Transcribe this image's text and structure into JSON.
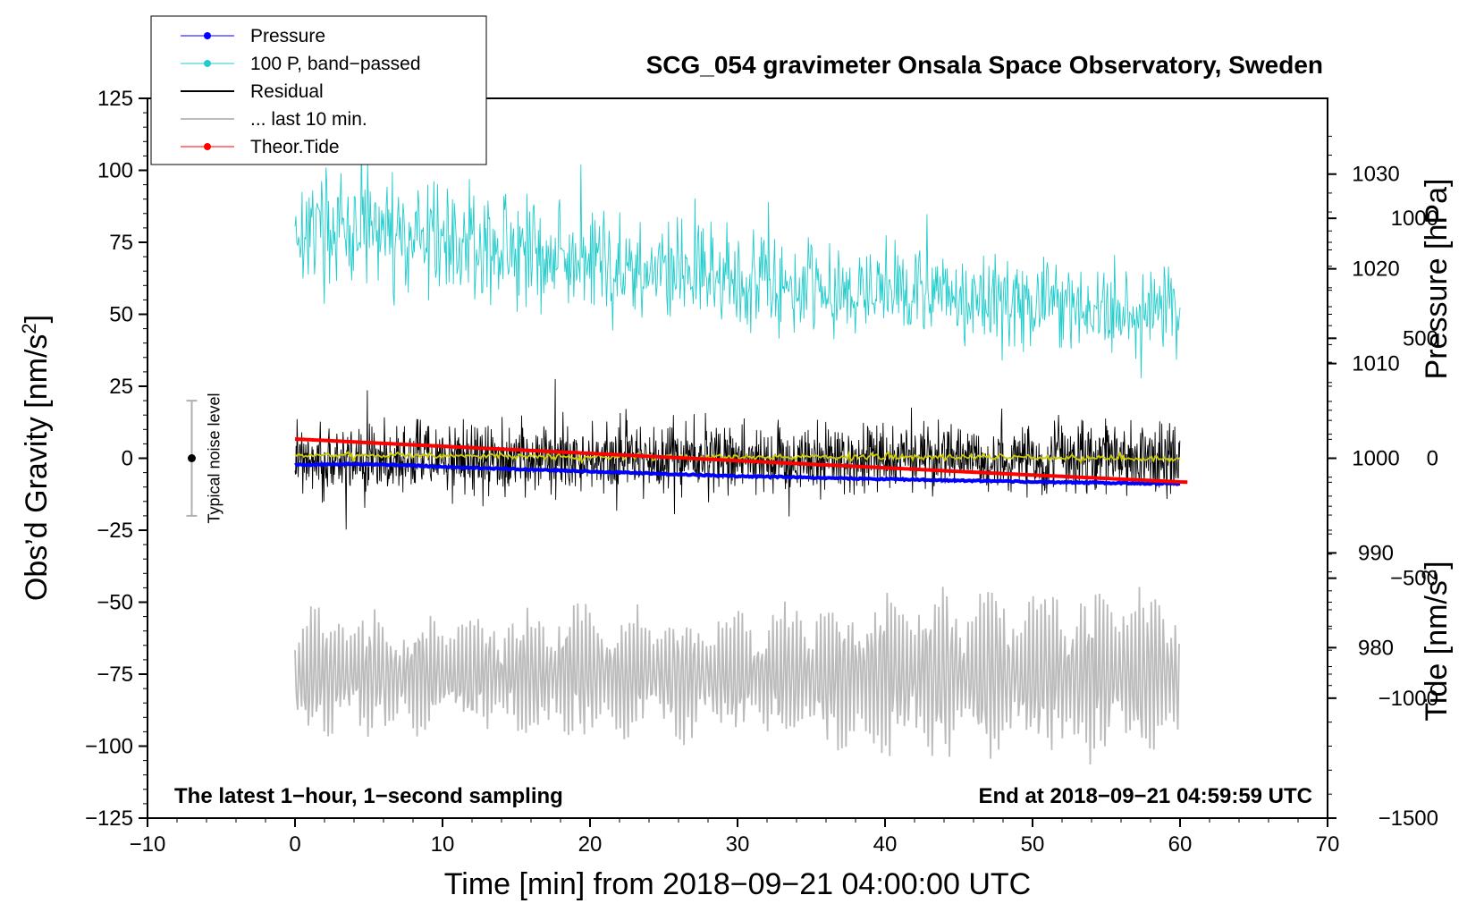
{
  "chart_data": {
    "type": "line",
    "title": "SCG_054 gravimeter Onsala Space Observatory, Sweden",
    "xlabel": "Time [min] from 2018−09−21 04:00:00 UTC",
    "ylabel_prefix": "Obs’d Gravity [nm/s",
    "ylabel_sup": "2",
    "ylabel_suffix": "]",
    "y2label_pressure": "Pressure [hPa]",
    "y2label_tide_prefix": "Tide [nm/s",
    "y2label_tide_sup": "2",
    "y2label_tide_suffix": "]",
    "xlim": [
      -10,
      70
    ],
    "ylim": [
      -125,
      125
    ],
    "pressure_axis_range": [
      962,
      1038
    ],
    "tide_axis_range": [
      -1500,
      1500
    ],
    "x_ticks": [
      -10,
      0,
      10,
      20,
      30,
      40,
      50,
      60,
      70
    ],
    "x_tick_labels": [
      "−10",
      "0",
      "10",
      "20",
      "30",
      "40",
      "50",
      "60",
      "70"
    ],
    "y_ticks": [
      -125,
      -100,
      -75,
      -50,
      -25,
      0,
      25,
      50,
      75,
      100,
      125
    ],
    "y_tick_labels": [
      "−125",
      "−100",
      "−75",
      "−50",
      "−25",
      "0",
      "25",
      "50",
      "75",
      "100",
      "125"
    ],
    "pressure_ticks": [
      980,
      990,
      1000,
      1010,
      1020,
      1030
    ],
    "pressure_tick_labels": [
      "980",
      "990",
      "1000",
      "1010",
      "1020",
      "1030"
    ],
    "tide_ticks": [
      -1500,
      -1000,
      -500,
      0,
      500,
      1000
    ],
    "tide_tick_labels": [
      "−1500",
      "−1000",
      "−500",
      "0",
      "500",
      "1000"
    ],
    "annotation_left": "The latest 1−hour, 1−second sampling",
    "annotation_right": "End at 2018−09−21 04:59:59 UTC",
    "noise_bar": {
      "label": "Typical noise level",
      "x": -7,
      "y_center": 0,
      "y_half_range": 20
    },
    "legend": [
      {
        "name": "Pressure",
        "color": "#0000ff",
        "marker": true,
        "width": 1
      },
      {
        "name": "100 P, band−passed",
        "color": "#22cccc",
        "marker": true,
        "width": 1
      },
      {
        "name": "Residual",
        "color": "#000000",
        "marker": false,
        "width": 2
      },
      {
        "name": "... last 10 min.",
        "color": "#bbbbbb",
        "marker": false,
        "width": 2
      },
      {
        "name": "Theor.Tide",
        "color": "#ff0000",
        "marker": true,
        "width": 1
      }
    ],
    "series": [
      {
        "name": "Pressure",
        "axis": "pressure_hPa",
        "color": "#0000ff",
        "x": [
          0,
          5,
          10,
          20,
          30,
          40,
          50,
          60
        ],
        "values": [
          999.3,
          999.4,
          999.1,
          998.6,
          998.1,
          997.8,
          997.5,
          997.3
        ]
      },
      {
        "name": "100 P, band−passed",
        "axis": "gravity_nm_s2",
        "color": "#22cccc",
        "x": [
          0,
          10,
          20,
          30,
          40,
          50,
          60
        ],
        "center": [
          80,
          76,
          68,
          62,
          58,
          54,
          50
        ],
        "amplitude": [
          28,
          28,
          27,
          25,
          23,
          23,
          23
        ]
      },
      {
        "name": "Residual",
        "axis": "gravity_nm_s2",
        "color": "#000000",
        "x": [
          0,
          10,
          20,
          30,
          40,
          50,
          60
        ],
        "center": [
          0,
          0,
          0,
          0,
          0,
          0,
          0
        ],
        "amplitude": [
          18,
          20,
          18,
          17,
          16,
          17,
          18
        ]
      },
      {
        "name": "Residual smoothed",
        "axis": "gravity_nm_s2",
        "color": "#cccc00",
        "x": [
          0,
          10,
          20,
          30,
          40,
          50,
          60
        ],
        "center": [
          1,
          1,
          0.5,
          0.5,
          0.5,
          0.5,
          -0.5
        ],
        "amplitude": [
          1.5,
          1.5,
          1.5,
          1.5,
          1.5,
          1.5,
          1.5
        ]
      },
      {
        "name": "... last 10 min.",
        "axis": "gravity_nm_s2",
        "color": "#bbbbbb",
        "x": [
          0,
          10,
          20,
          30,
          40,
          50,
          60
        ],
        "center": [
          -75,
          -75,
          -75,
          -75,
          -75,
          -75,
          -75
        ],
        "amplitude": [
          18,
          15,
          18,
          16,
          22,
          22,
          22
        ]
      },
      {
        "name": "Theor.Tide",
        "axis": "tide_nm_s2",
        "color": "#ff0000",
        "x": [
          0,
          10,
          20,
          30,
          40,
          50,
          60.5
        ],
        "values": [
          80,
          50,
          20,
          -10,
          -40,
          -70,
          -100
        ]
      }
    ]
  }
}
